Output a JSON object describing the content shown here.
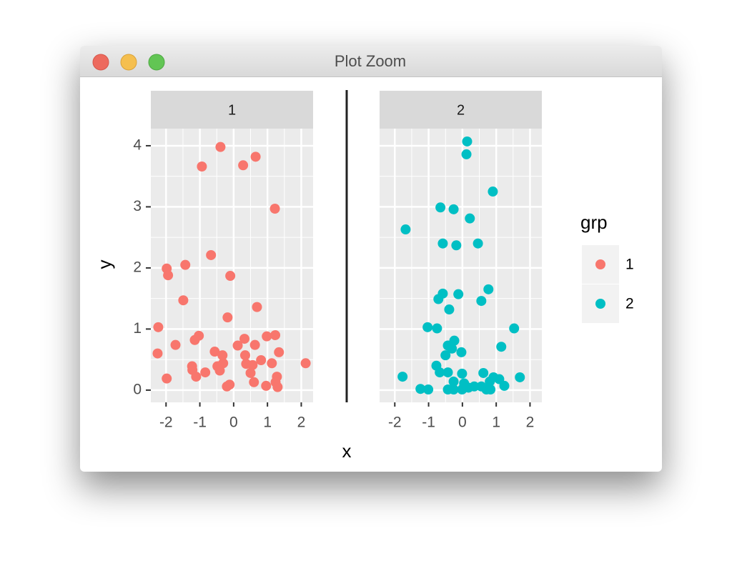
{
  "window": {
    "title": "Plot Zoom"
  },
  "chart_data": [
    {
      "type": "scatter",
      "panel": "1",
      "x_label": "x",
      "y_label": "y",
      "legend_title": "grp",
      "legend": "right",
      "grid": true,
      "xlim": [
        -2.45,
        2.35
      ],
      "ylim": [
        -0.2,
        4.28
      ],
      "xticks": [
        -2,
        -1,
        0,
        1,
        2
      ],
      "yticks": [
        0,
        1,
        2,
        3,
        4
      ],
      "series": [
        {
          "name": "1",
          "color": "#F8766D",
          "x": [
            -0.39,
            0.65,
            0.28,
            -0.94,
            1.22,
            -0.67,
            -1.98,
            -1.94,
            -1.43,
            -0.1,
            -1.49,
            0.69,
            -0.18,
            -2.23,
            -1.03,
            -1.15,
            0.98,
            1.23,
            0.32,
            0.63,
            -1.72,
            0.12,
            -2.25,
            -0.56,
            -0.33,
            0.34,
            1.34,
            0.81,
            -0.31,
            0.37,
            2.13,
            1.13,
            0.56,
            -0.48,
            -1.23,
            -1.22,
            -0.41,
            -0.84,
            0.5,
            -1.11,
            1.28,
            -1.98,
            0.6,
            1.24,
            -0.12,
            -0.2,
            0.96,
            1.3
          ],
          "values": [
            3.98,
            3.82,
            3.68,
            3.66,
            2.97,
            2.21,
            1.99,
            1.88,
            2.05,
            1.87,
            1.47,
            1.36,
            1.19,
            1.03,
            0.89,
            0.82,
            0.88,
            0.9,
            0.84,
            0.74,
            0.74,
            0.73,
            0.6,
            0.63,
            0.57,
            0.57,
            0.62,
            0.49,
            0.44,
            0.43,
            0.44,
            0.44,
            0.41,
            0.39,
            0.39,
            0.33,
            0.32,
            0.29,
            0.28,
            0.22,
            0.22,
            0.19,
            0.13,
            0.13,
            0.09,
            0.06,
            0.07,
            0.05
          ]
        }
      ]
    },
    {
      "type": "scatter",
      "panel": "2",
      "grid": true,
      "xlim": [
        -2.45,
        2.35
      ],
      "ylim": [
        -0.2,
        4.28
      ],
      "xticks": [
        -2,
        -1,
        0,
        1,
        2
      ],
      "yticks": [
        0,
        1,
        2,
        3,
        4
      ],
      "series": [
        {
          "name": "2",
          "color": "#00BFC4",
          "x": [
            0.14,
            0.12,
            0.9,
            -0.65,
            -0.26,
            0.22,
            -1.68,
            -0.58,
            -0.18,
            0.46,
            0.77,
            -0.58,
            -0.12,
            -0.71,
            0.56,
            -0.39,
            -1.03,
            -0.75,
            1.53,
            -0.24,
            -0.43,
            -0.31,
            1.15,
            -0.03,
            -0.5,
            -0.77,
            -0.67,
            -0.43,
            0.62,
            -0.01,
            -1.77,
            1.7,
            0.92,
            1.09,
            0.81,
            -0.26,
            0.05,
            1.24,
            0.35,
            0.56,
            0.18,
            -1.24,
            -1.01,
            -0.43,
            -0.26,
            -0.01,
            0.71,
            0.83
          ],
          "values": [
            4.07,
            3.86,
            3.25,
            2.99,
            2.96,
            2.81,
            2.63,
            2.4,
            2.37,
            2.4,
            1.65,
            1.58,
            1.57,
            1.49,
            1.46,
            1.32,
            1.03,
            1.01,
            1.01,
            0.81,
            0.73,
            0.68,
            0.71,
            0.62,
            0.57,
            0.4,
            0.29,
            0.29,
            0.28,
            0.27,
            0.22,
            0.21,
            0.21,
            0.18,
            0.14,
            0.14,
            0.11,
            0.07,
            0.06,
            0.06,
            0.04,
            0.02,
            0.01,
            0.01,
            0.01,
            0.01,
            0.01,
            0.01
          ]
        }
      ]
    }
  ]
}
